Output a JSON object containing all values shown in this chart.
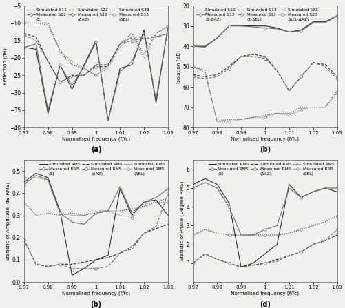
{
  "freq": [
    0.97,
    0.975,
    0.98,
    0.985,
    0.99,
    0.995,
    1.0,
    1.005,
    1.01,
    1.015,
    1.02,
    1.025,
    1.03
  ],
  "ax1": {
    "ylabel": "Reflection (dB)",
    "xlabel": "Normalised frequency (f/fc)",
    "label": "(a)",
    "ylim": [
      -40,
      -5
    ],
    "yticks": [
      -40,
      -35,
      -30,
      -25,
      -20,
      -15,
      -10,
      -5
    ],
    "sim_S11": [
      -17,
      -17.5,
      -36,
      -22,
      -29,
      -22,
      -15,
      -38,
      -23,
      -22,
      -12,
      -33,
      -11
    ],
    "sim_S22": [
      -13,
      -14,
      -21,
      -27,
      -25,
      -25,
      -22,
      -22,
      -16,
      -14,
      -14,
      -14,
      -13
    ],
    "sim_S33": [
      -10,
      -10,
      -10,
      -18,
      -22,
      -23,
      -25,
      -22,
      -16,
      -13,
      -19,
      -13,
      -11
    ],
    "meas_S11": [
      -17,
      -16,
      -35,
      -22,
      -28,
      -22.5,
      -15.5,
      -38,
      -24,
      -21,
      -13,
      -32,
      -11
    ],
    "meas_S22": [
      -13.5,
      -15,
      -21,
      -27,
      -25.5,
      -25,
      -22.5,
      -22.5,
      -16,
      -15,
      -14.5,
      -14,
      -13
    ],
    "meas_S33": [
      -10,
      -10,
      -10.5,
      -18,
      -21,
      -23,
      -25,
      -23,
      -17,
      -14,
      -20,
      -13,
      -11
    ],
    "sim_labels": [
      "Simulated S11",
      "Simulated S22",
      "Simulated S33"
    ],
    "meas_labels": [
      "Measured S11",
      "Measured S22",
      "Measured S33"
    ],
    "port_labels": [
      "(Σ)",
      "(ΔAZ)",
      "(ΔEL)"
    ]
  },
  "ax2": {
    "ylabel": "Isolation (dB)",
    "xlabel": "Normalised frequency (f/fc)",
    "label": "(b)",
    "ylim": [
      80,
      20
    ],
    "yticks": [
      80,
      70,
      60,
      50,
      40,
      30,
      20
    ],
    "sim_S12": [
      40,
      40,
      36,
      30,
      30,
      30,
      30,
      31,
      33,
      32,
      28,
      28,
      25
    ],
    "sim_S13": [
      54,
      55,
      54,
      50,
      45,
      44,
      45,
      52,
      62,
      55,
      48,
      49,
      55
    ],
    "sim_S23": [
      50,
      52,
      77,
      76,
      76,
      75,
      74,
      73,
      73,
      70,
      70,
      70,
      62
    ],
    "meas_S12": [
      40,
      40.5,
      36,
      30,
      30,
      30.5,
      31,
      31.5,
      33,
      32.5,
      28.5,
      28.5,
      25
    ],
    "meas_S13": [
      55,
      56,
      55,
      51,
      45,
      45,
      46,
      52,
      62,
      55,
      48,
      50,
      56
    ],
    "meas_S23": [
      50,
      53,
      77,
      77,
      76,
      75,
      75,
      73,
      74,
      71,
      70,
      70,
      63
    ],
    "sim_labels": [
      "Simulated S12",
      "Simulated S13",
      "Simulated S23"
    ],
    "meas_labels": [
      "Measured S12",
      "Measured S13",
      "Measured S23"
    ],
    "port_labels": [
      "(Σ-ΔAZ)",
      "(Σ-ΔEL)",
      "(ΔEL-ΔAZ)"
    ]
  },
  "ax3": {
    "ylabel": "Statistic of Amplitude (dB-RMS)",
    "xlabel": "Normalised frequency (f/fc)",
    "label": "(b)",
    "ylim": [
      0.0,
      0.55
    ],
    "yticks": [
      0.0,
      0.1,
      0.2,
      0.3,
      0.4,
      0.5
    ],
    "sim_Sigma": [
      0.45,
      0.49,
      0.47,
      0.32,
      0.03,
      0.06,
      0.1,
      0.12,
      0.42,
      0.3,
      0.36,
      0.37,
      0.3
    ],
    "sim_AZ": [
      0.19,
      0.08,
      0.07,
      0.08,
      0.08,
      0.09,
      0.1,
      0.11,
      0.13,
      0.15,
      0.22,
      0.24,
      0.26
    ],
    "sim_EL": [
      0.36,
      0.3,
      0.31,
      0.3,
      0.31,
      0.3,
      0.32,
      0.32,
      0.32,
      0.33,
      0.34,
      0.36,
      0.38
    ],
    "meas_Sigma": [
      0.44,
      0.48,
      0.46,
      0.31,
      0.27,
      0.26,
      0.31,
      0.32,
      0.43,
      0.31,
      0.36,
      0.38,
      0.42
    ],
    "meas_AZ": [
      0.19,
      0.08,
      0.07,
      0.08,
      0.06,
      0.06,
      0.06,
      0.07,
      0.13,
      0.16,
      0.22,
      0.25,
      0.4
    ],
    "meas_EL": [
      0.47,
      0.47,
      0.46,
      0.31,
      0.3,
      0.3,
      0.31,
      0.32,
      0.3,
      0.29,
      0.35,
      0.36,
      0.36
    ],
    "sim_labels": [
      "Simulated RMS",
      "Simulated RMS",
      "Simulated RMS"
    ],
    "meas_labels": [
      "Measured RMS",
      "Measured RMS",
      "Measured RMS"
    ],
    "port_labels": [
      "(Σ)",
      "(ΔAZ)",
      "(ΔEL)"
    ]
  },
  "ax4": {
    "ylabel": "Statistic of Phase (Degree-RMS)",
    "xlabel": "Normalised frequency (f/fc)",
    "label": "(d)",
    "ylim": [
      0.0,
      6.5
    ],
    "yticks": [
      1.0,
      2.0,
      3.0,
      4.0,
      5.0,
      6.0
    ],
    "sim_Sigma": [
      5.2,
      5.5,
      5.2,
      4.2,
      0.8,
      1.0,
      1.5,
      2.0,
      5.2,
      4.5,
      4.8,
      5.0,
      4.8
    ],
    "sim_AZ": [
      1.0,
      1.5,
      1.2,
      1.0,
      0.8,
      0.9,
      1.0,
      1.2,
      1.4,
      1.6,
      2.0,
      2.2,
      2.5
    ],
    "sim_EL": [
      2.5,
      2.8,
      2.6,
      2.5,
      2.5,
      2.5,
      2.5,
      2.5,
      2.6,
      2.8,
      3.0,
      3.2,
      3.5
    ],
    "meas_Sigma": [
      5.0,
      5.3,
      5.0,
      4.0,
      2.5,
      2.5,
      2.8,
      3.0,
      5.0,
      4.5,
      4.8,
      5.0,
      5.0
    ],
    "meas_AZ": [
      1.0,
      1.5,
      1.2,
      1.0,
      0.8,
      0.9,
      1.0,
      1.1,
      1.4,
      1.6,
      2.0,
      2.2,
      2.8
    ],
    "meas_EL": [
      2.5,
      2.8,
      2.6,
      2.5,
      2.5,
      2.5,
      2.5,
      2.5,
      2.6,
      2.8,
      3.0,
      3.2,
      3.5
    ],
    "sim_labels": [
      "Simulated RMS",
      "Simulated RMS",
      "Simulated RMS"
    ],
    "meas_labels": [
      "Measured RMS",
      "Measured RMS",
      "Measured RMS"
    ],
    "port_labels": [
      "(Σ)",
      "(ΔAZ)",
      "(ΔEL)"
    ]
  },
  "freq_ticks": [
    0.97,
    0.98,
    0.99,
    1.0,
    1.01,
    1.02,
    1.03
  ],
  "background": "#f0f0ec"
}
